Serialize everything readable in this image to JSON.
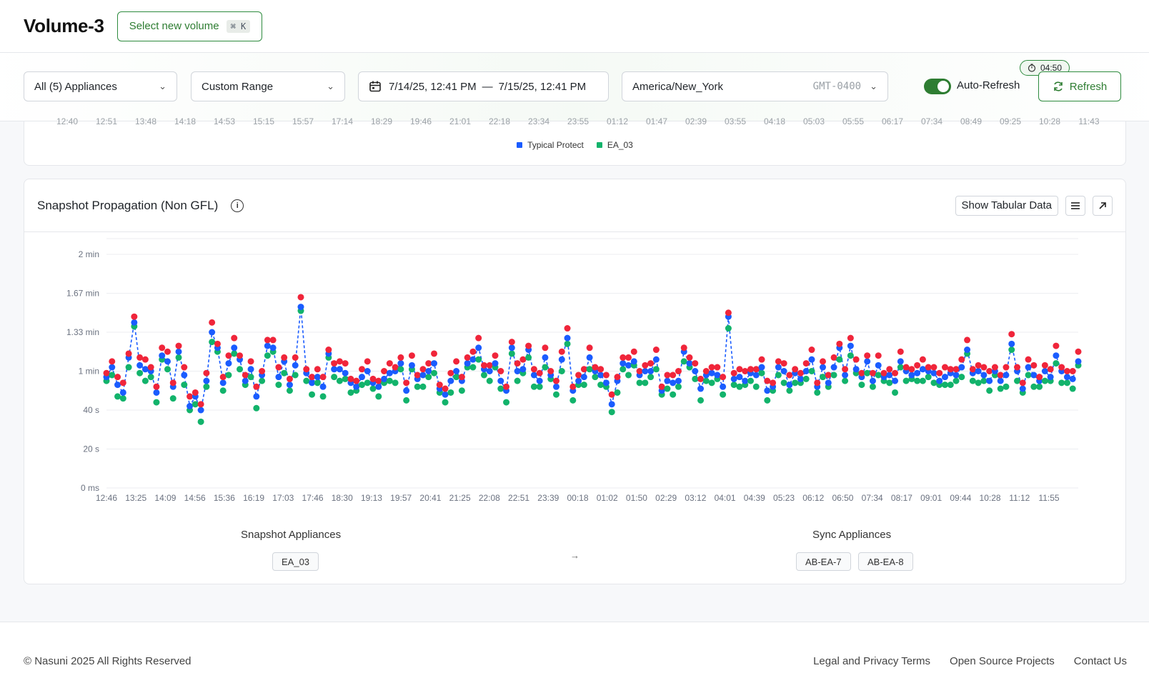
{
  "header": {
    "title": "Volume-3",
    "select_volume_label": "Select new volume",
    "shortcut": "⌘ K"
  },
  "filters": {
    "appliances": "All (5) Appliances",
    "range": "Custom Range",
    "date_from": "7/14/25, 12:41 PM",
    "date_sep": "—",
    "date_to": "7/15/25, 12:41 PM",
    "timezone": "America/New_York",
    "gmt": "GMT-0400",
    "auto_refresh_label": "Auto-Refresh",
    "auto_refresh_on": true,
    "refresh_label": "Refresh",
    "countdown": "04:50"
  },
  "top_chart": {
    "x_ticks": [
      "12:40",
      "12:51",
      "13:48",
      "14:18",
      "14:53",
      "15:15",
      "15:57",
      "17:14",
      "18:29",
      "19:46",
      "21:01",
      "22:18",
      "23:34",
      "23:55",
      "01:12",
      "01:47",
      "02:39",
      "03:55",
      "04:18",
      "05:03",
      "05:55",
      "06:17",
      "07:34",
      "08:49",
      "09:25",
      "10:28",
      "11:43"
    ],
    "legend": [
      {
        "name": "Typical Protect",
        "color": "#1a5cff"
      },
      {
        "name": "EA_03",
        "color": "#12b36b"
      }
    ]
  },
  "main_card": {
    "title": "Snapshot Propagation (Non GFL)",
    "show_tabular_label": "Show Tabular Data",
    "snapshot_appliances_label": "Snapshot Appliances",
    "snapshot_chips": [
      "EA_03"
    ],
    "arrow": "→",
    "sync_appliances_label": "Sync Appliances",
    "sync_chips": [
      "AB-EA-7",
      "AB-EA-8"
    ]
  },
  "chart_data": {
    "type": "scatter",
    "title": "Snapshot Propagation (Non GFL)",
    "xlabel": "",
    "ylabel": "",
    "y_unit": "seconds",
    "ylim": [
      0,
      120
    ],
    "y_ticks": [
      0,
      20,
      40,
      60,
      80,
      100,
      120
    ],
    "y_tick_labels": [
      "0 ms",
      "20 s",
      "40 s",
      "1 min",
      "1.33 min",
      "1.67 min",
      "2 min"
    ],
    "x_tick_labels": [
      "12:46",
      "13:25",
      "14:09",
      "14:56",
      "15:36",
      "16:19",
      "17:03",
      "17:46",
      "18:30",
      "19:13",
      "19:57",
      "20:41",
      "21:25",
      "22:08",
      "22:51",
      "23:39",
      "00:18",
      "01:02",
      "01:50",
      "02:29",
      "03:12",
      "04:01",
      "04:39",
      "05:23",
      "06:12",
      "06:50",
      "07:34",
      "08:17",
      "09:01",
      "09:44",
      "10:28",
      "11:12",
      "11:55"
    ],
    "colors": {
      "blue": "#1a5cff",
      "green": "#12b36b",
      "red": "#f0253a"
    },
    "series": [
      {
        "values": [
          57,
          62,
          53,
          49,
          67,
          85,
          63,
          61,
          60,
          49,
          68,
          65,
          52,
          70,
          58,
          42,
          47,
          40,
          55,
          80,
          72,
          54,
          64,
          72,
          66,
          55,
          61,
          47,
          58,
          73,
          72,
          57,
          65,
          53,
          63,
          93,
          59,
          54,
          57,
          52,
          69,
          61,
          61,
          59,
          54,
          52,
          57,
          60,
          54,
          52,
          56,
          59,
          60,
          64,
          50,
          63,
          56,
          58,
          60,
          64,
          51,
          48,
          55,
          60,
          55,
          64,
          66,
          72,
          61,
          60,
          64,
          55,
          50,
          72,
          60,
          61,
          71,
          58,
          55,
          67,
          58,
          52,
          66,
          77,
          50,
          55,
          57,
          67,
          60,
          58,
          54,
          43,
          55,
          64,
          63,
          65,
          58,
          60,
          60,
          66,
          50,
          55,
          54,
          55,
          70,
          64,
          60,
          51,
          58,
          59,
          58,
          52,
          88,
          56,
          57,
          55,
          59,
          58,
          62,
          50,
          52,
          62,
          60,
          53,
          59,
          56,
          60,
          66,
          52,
          62,
          54,
          62,
          72,
          58,
          73,
          61,
          57,
          65,
          55,
          63,
          57,
          58,
          55,
          65,
          60,
          58,
          59,
          61,
          60,
          59,
          55,
          57,
          59,
          58,
          62,
          71,
          59,
          60,
          58,
          55,
          60,
          55,
          58,
          74,
          60,
          51,
          62,
          58,
          55,
          60,
          57,
          68,
          60,
          57,
          56,
          65
        ],
        "color": "#1a5cff"
      }
    ]
  },
  "footer": {
    "copyright": "© Nasuni 2025 All Rights Reserved",
    "links": [
      "Legal and Privacy Terms",
      "Open Source Projects",
      "Contact Us"
    ]
  }
}
